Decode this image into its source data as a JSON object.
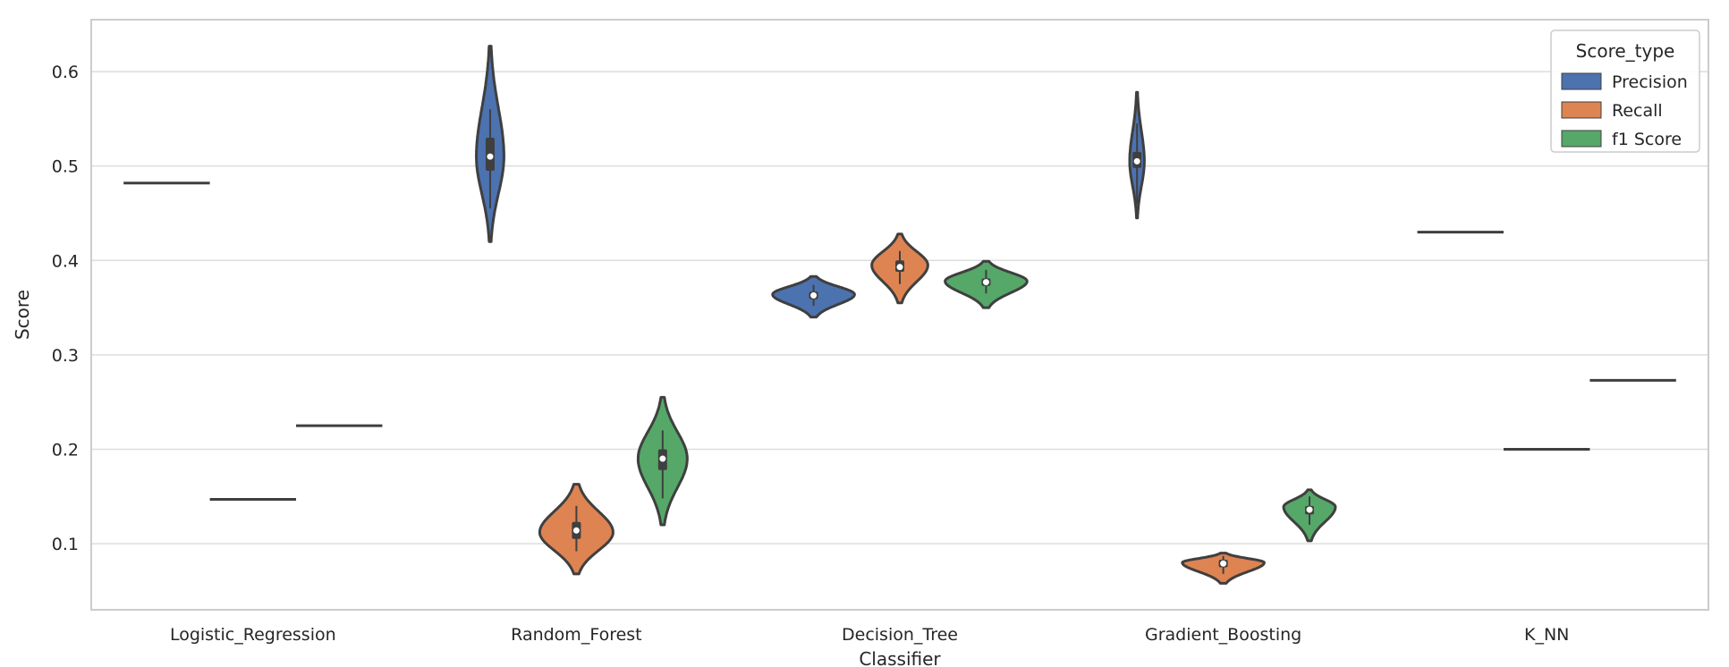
{
  "chart_data": {
    "type": "violin",
    "xlabel": "Classifier",
    "ylabel": "Score",
    "categories": [
      "Logistic_Regression",
      "Random_Forest",
      "Decision_Tree",
      "Gradient_Boosting",
      "K_NN"
    ],
    "yticks": [
      0.1,
      0.2,
      0.3,
      0.4,
      0.5,
      0.6
    ],
    "ylim": [
      0.03,
      0.655
    ],
    "grid": "horizontal",
    "legend": {
      "title": "Score_type",
      "position": "top-right",
      "entries": [
        "Precision",
        "Recall",
        "f1 Score"
      ]
    },
    "series": [
      {
        "name": "Precision",
        "color": "#4c72b0",
        "violins": [
          {
            "category": "Logistic_Regression",
            "min": 0.482,
            "max": 0.482,
            "median": 0.482
          },
          {
            "category": "Random_Forest",
            "min": 0.42,
            "max": 0.627,
            "median": 0.51,
            "q1": 0.495,
            "q3": 0.53,
            "whisker_low": 0.455,
            "whisker_high": 0.56,
            "peak": 0.51,
            "max_half_width": 0.32
          },
          {
            "category": "Decision_Tree",
            "min": 0.34,
            "max": 0.383,
            "median": 0.363,
            "q1": 0.359,
            "q3": 0.367,
            "whisker_low": 0.352,
            "whisker_high": 0.374,
            "peak": 0.364,
            "max_half_width": 0.95
          },
          {
            "category": "Gradient_Boosting",
            "min": 0.445,
            "max": 0.578,
            "median": 0.505,
            "q1": 0.498,
            "q3": 0.515,
            "whisker_low": 0.46,
            "whisker_high": 0.545,
            "peak": 0.505,
            "max_half_width": 0.17
          },
          {
            "category": "K_NN",
            "min": 0.43,
            "max": 0.43,
            "median": 0.43
          }
        ]
      },
      {
        "name": "Recall",
        "color": "#dd8452",
        "violins": [
          {
            "category": "Logistic_Regression",
            "min": 0.147,
            "max": 0.147,
            "median": 0.147
          },
          {
            "category": "Random_Forest",
            "min": 0.068,
            "max": 0.163,
            "median": 0.114,
            "q1": 0.105,
            "q3": 0.123,
            "whisker_low": 0.092,
            "whisker_high": 0.14,
            "peak": 0.112,
            "max_half_width": 0.85
          },
          {
            "category": "Decision_Tree",
            "min": 0.355,
            "max": 0.428,
            "median": 0.393,
            "q1": 0.388,
            "q3": 0.4,
            "whisker_low": 0.375,
            "whisker_high": 0.41,
            "peak": 0.395,
            "max_half_width": 0.65
          },
          {
            "category": "Gradient_Boosting",
            "min": 0.058,
            "max": 0.09,
            "median": 0.079,
            "q1": 0.075,
            "q3": 0.083,
            "whisker_low": 0.068,
            "whisker_high": 0.087,
            "peak": 0.08,
            "max_half_width": 0.95
          },
          {
            "category": "K_NN",
            "min": 0.2,
            "max": 0.2,
            "median": 0.2
          }
        ]
      },
      {
        "name": "f1 Score",
        "color": "#55a868",
        "violins": [
          {
            "category": "Logistic_Regression",
            "min": 0.225,
            "max": 0.225,
            "median": 0.225
          },
          {
            "category": "Random_Forest",
            "min": 0.12,
            "max": 0.255,
            "median": 0.19,
            "q1": 0.178,
            "q3": 0.2,
            "whisker_low": 0.148,
            "whisker_high": 0.22,
            "peak": 0.19,
            "max_half_width": 0.57
          },
          {
            "category": "Decision_Tree",
            "min": 0.35,
            "max": 0.399,
            "median": 0.377,
            "q1": 0.373,
            "q3": 0.381,
            "whisker_low": 0.365,
            "whisker_high": 0.39,
            "peak": 0.378,
            "max_half_width": 0.95
          },
          {
            "category": "Gradient_Boosting",
            "min": 0.103,
            "max": 0.157,
            "median": 0.136,
            "q1": 0.131,
            "q3": 0.14,
            "whisker_low": 0.12,
            "whisker_high": 0.15,
            "peak": 0.139,
            "max_half_width": 0.6
          },
          {
            "category": "K_NN",
            "min": 0.273,
            "max": 0.273,
            "median": 0.273
          }
        ]
      }
    ]
  }
}
